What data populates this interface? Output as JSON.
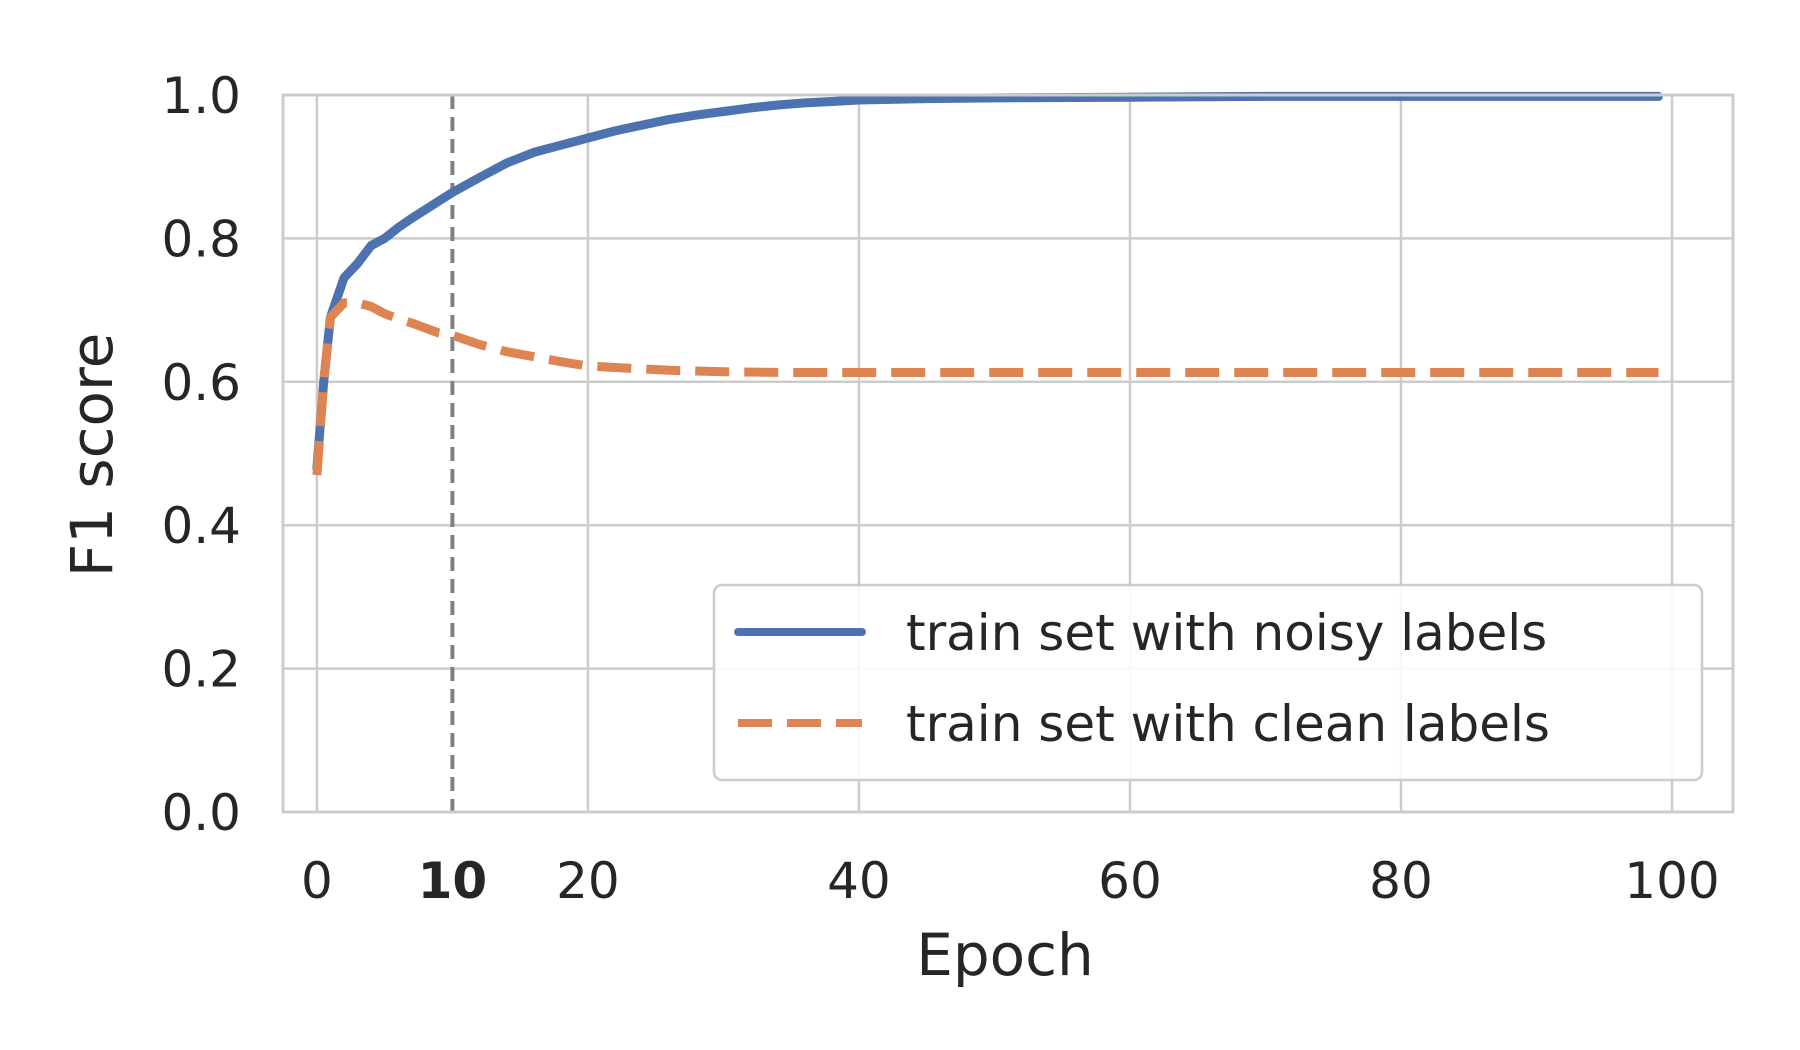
{
  "chart_data": {
    "type": "line",
    "xlabel": "Epoch",
    "ylabel": "F1 score",
    "xlim": [
      -2.5,
      104.5
    ],
    "ylim": [
      0.0,
      1.0
    ],
    "xticks": [
      0,
      10,
      20,
      40,
      60,
      80,
      100
    ],
    "xtick_labels": [
      "0",
      "10",
      "20",
      "40",
      "60",
      "80",
      "100"
    ],
    "xtick_bold": [
      false,
      true,
      false,
      false,
      false,
      false,
      false
    ],
    "yticks": [
      0.0,
      0.2,
      0.4,
      0.6,
      0.8,
      1.0
    ],
    "ytick_labels": [
      "0.0",
      "0.2",
      "0.4",
      "0.6",
      "0.8",
      "1.0"
    ],
    "grid": true,
    "legend_position": "lower-right",
    "vline": {
      "x": 10,
      "color": "#808080",
      "style": "dashed"
    },
    "series": [
      {
        "name": "train set with noisy labels",
        "color": "#4c72b0",
        "style": "solid",
        "x": [
          0,
          0.5,
          1,
          2,
          3,
          4,
          5,
          6,
          7,
          8,
          9,
          10,
          12,
          14,
          16,
          18,
          20,
          22,
          24,
          26,
          28,
          30,
          32,
          34,
          36,
          38,
          40,
          45,
          50,
          60,
          70,
          80,
          90,
          99
        ],
        "y": [
          0.48,
          0.6,
          0.69,
          0.745,
          0.765,
          0.79,
          0.8,
          0.815,
          0.828,
          0.84,
          0.852,
          0.864,
          0.885,
          0.905,
          0.92,
          0.93,
          0.94,
          0.95,
          0.958,
          0.966,
          0.972,
          0.977,
          0.982,
          0.986,
          0.989,
          0.991,
          0.993,
          0.995,
          0.996,
          0.997,
          0.998,
          0.998,
          0.998,
          0.998
        ]
      },
      {
        "name": "train set with clean labels",
        "color": "#dd8452",
        "style": "dashed",
        "x": [
          0,
          0.5,
          1,
          2,
          3,
          4,
          5,
          6,
          7,
          8,
          9,
          10,
          12,
          14,
          16,
          18,
          20,
          22,
          24,
          26,
          28,
          30,
          35,
          40,
          50,
          60,
          70,
          80,
          90,
          99
        ],
        "y": [
          0.47,
          0.6,
          0.69,
          0.71,
          0.71,
          0.705,
          0.695,
          0.688,
          0.682,
          0.675,
          0.668,
          0.665,
          0.652,
          0.642,
          0.635,
          0.628,
          0.622,
          0.62,
          0.618,
          0.616,
          0.615,
          0.614,
          0.613,
          0.613,
          0.613,
          0.613,
          0.613,
          0.613,
          0.613,
          0.613
        ]
      }
    ]
  }
}
